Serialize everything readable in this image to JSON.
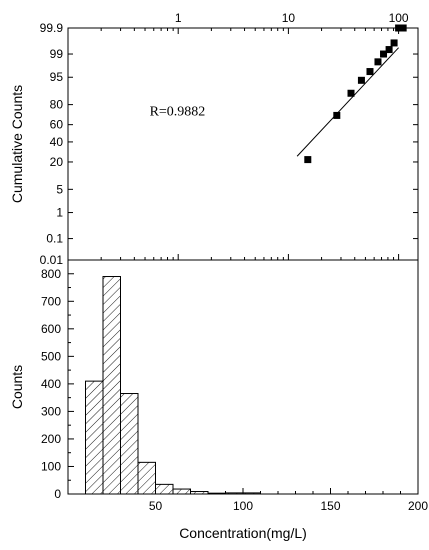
{
  "chart_data": [
    {
      "type": "scatter",
      "x_scale": "log",
      "y_scale": "probability",
      "ylabel": "Cumulative Counts",
      "x_ticks": [
        "1",
        "10",
        "100"
      ],
      "y_ticks": [
        "99.9",
        "99",
        "95",
        "80",
        "60",
        "40",
        "20",
        "5",
        "1",
        "0.1",
        "0.01"
      ],
      "xlim": [
        0.1,
        150
      ],
      "ylim": [
        0.01,
        99.9
      ],
      "annotation": "R=0.9882",
      "points": [
        {
          "x": 15,
          "y": 22
        },
        {
          "x": 27.5,
          "y": 70
        },
        {
          "x": 37,
          "y": 88
        },
        {
          "x": 46,
          "y": 94
        },
        {
          "x": 55,
          "y": 96.5
        },
        {
          "x": 65,
          "y": 98.2
        },
        {
          "x": 73,
          "y": 99.0
        },
        {
          "x": 82,
          "y": 99.3
        },
        {
          "x": 91,
          "y": 99.6
        },
        {
          "x": 100,
          "y": 99.9
        },
        {
          "x": 110,
          "y": 99.9
        }
      ],
      "fit_line": {
        "x": [
          12,
          100
        ],
        "y": [
          25,
          99.4
        ]
      }
    },
    {
      "type": "bar",
      "subtype": "histogram",
      "xlabel": "Concentration(mg/L)",
      "ylabel": "Counts",
      "xlim": [
        0,
        200
      ],
      "ylim": [
        0,
        850
      ],
      "x_ticks": [
        "50",
        "100",
        "150",
        "200"
      ],
      "y_ticks": [
        "0",
        "100",
        "200",
        "300",
        "400",
        "500",
        "600",
        "700",
        "800"
      ],
      "bin_width": 10,
      "bins": [
        {
          "start": 10,
          "end": 20,
          "count": 410
        },
        {
          "start": 20,
          "end": 30,
          "count": 790
        },
        {
          "start": 30,
          "end": 40,
          "count": 365
        },
        {
          "start": 40,
          "end": 50,
          "count": 115
        },
        {
          "start": 50,
          "end": 60,
          "count": 35
        },
        {
          "start": 60,
          "end": 70,
          "count": 18
        },
        {
          "start": 70,
          "end": 80,
          "count": 9
        },
        {
          "start": 80,
          "end": 90,
          "count": 3
        },
        {
          "start": 90,
          "end": 100,
          "count": 4
        },
        {
          "start": 100,
          "end": 110,
          "count": 4
        },
        {
          "start": 110,
          "end": 120,
          "count": 0
        }
      ]
    }
  ]
}
